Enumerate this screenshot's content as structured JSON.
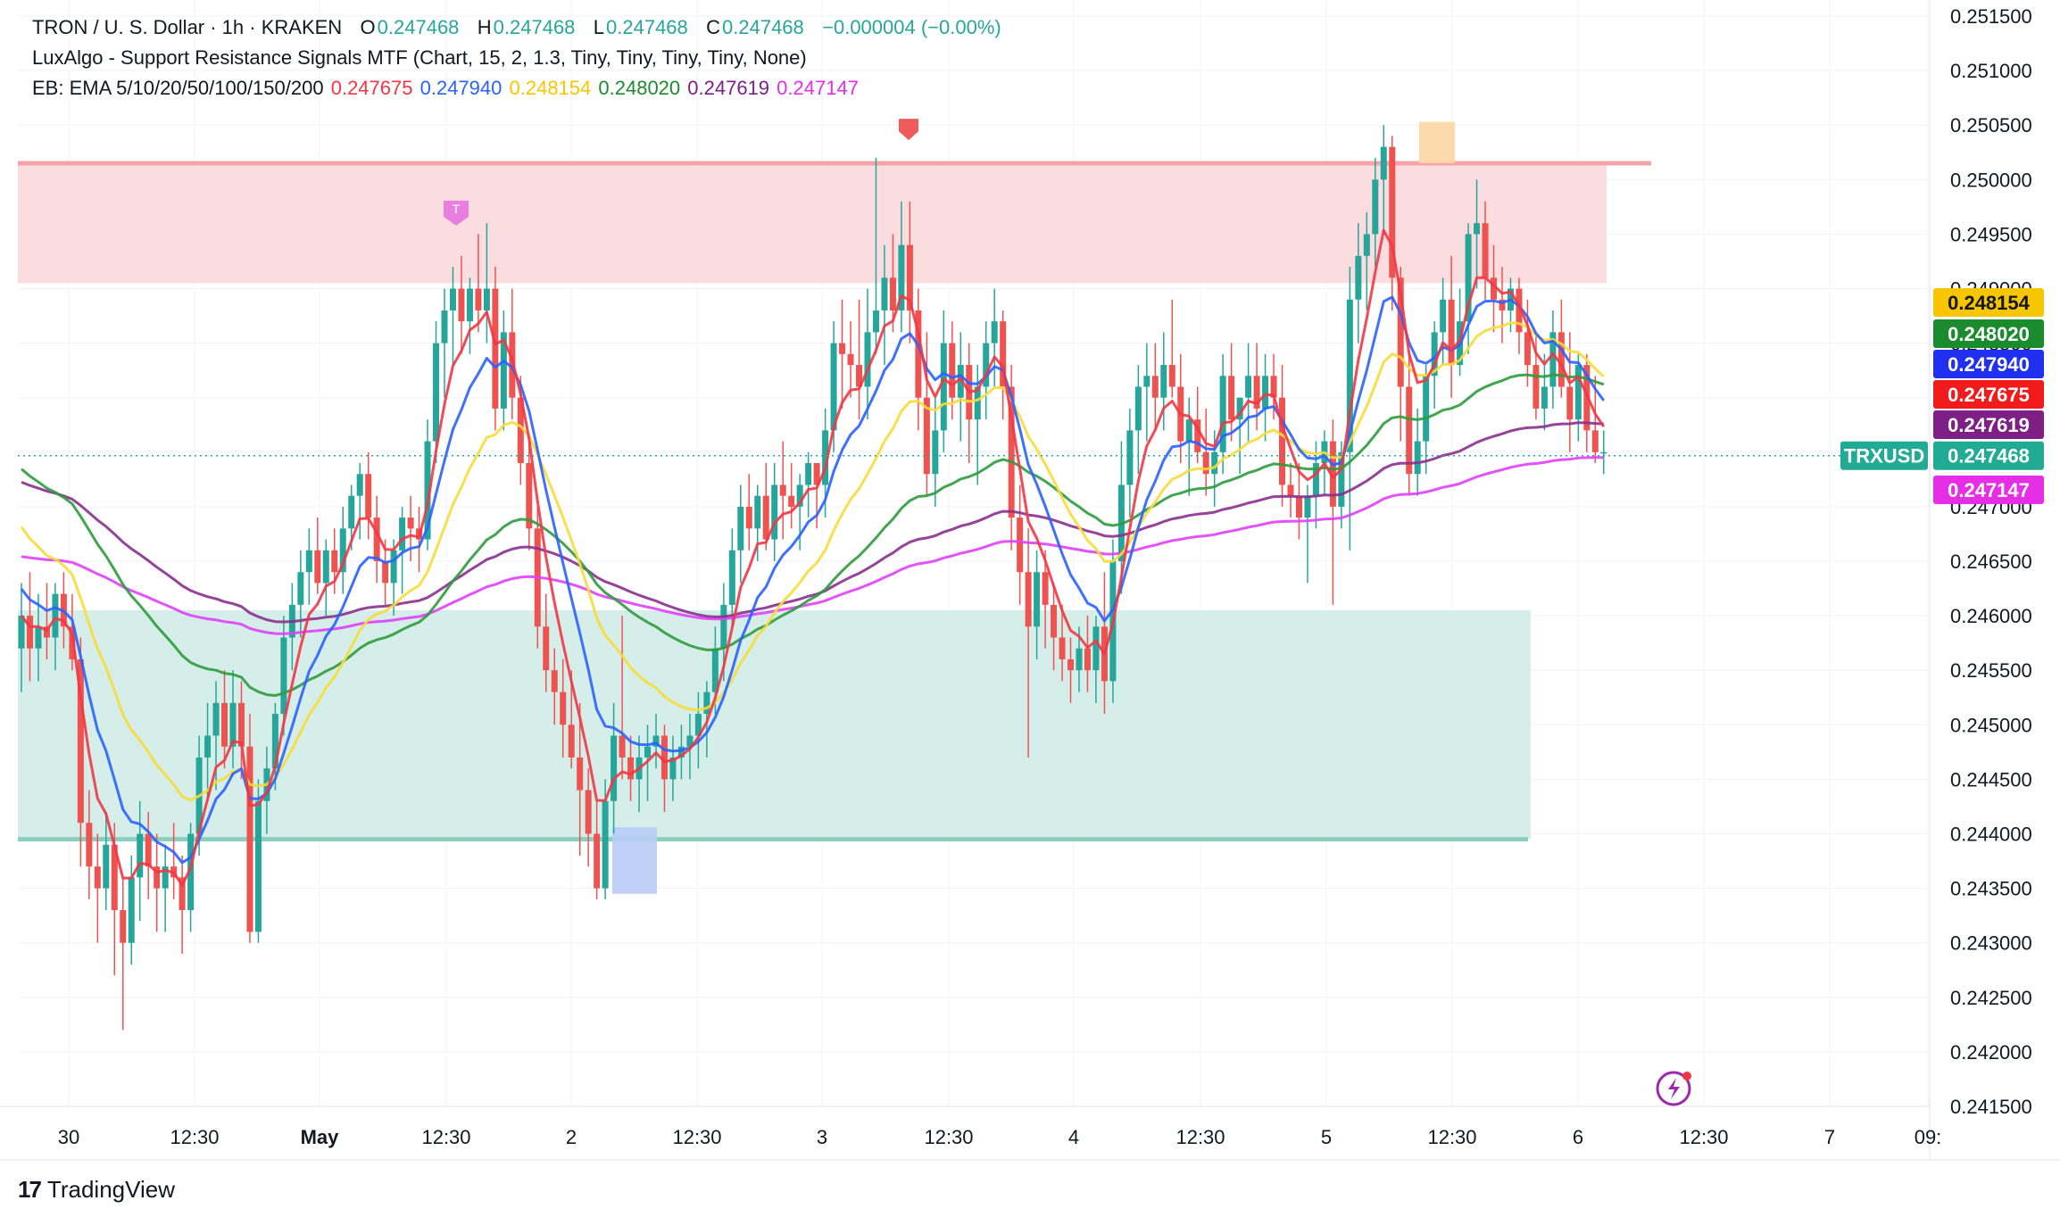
{
  "header": {
    "symbol_line": {
      "title": "TRON / U. S. Dollar · 1h · KRAKEN",
      "o_label": "O",
      "o_value": "0.247468",
      "h_label": "H",
      "h_value": "0.247468",
      "l_label": "L",
      "l_value": "0.247468",
      "c_label": "C",
      "c_value": "0.247468",
      "change": "−0.000004 (−0.00%)"
    },
    "indicator_line": "LuxAlgo - Support Resistance Signals MTF (Chart, 15, 2, 1.3, Tiny, Tiny, Tiny, Tiny, None)",
    "ema_line": {
      "label": "EB: EMA 5/10/20/50/100/150/200",
      "values": [
        "0.247675",
        "0.247940",
        "0.248154",
        "0.248020",
        "0.247619",
        "0.247147"
      ]
    }
  },
  "colors": {
    "up": "#26a69a",
    "down": "#ef5350",
    "ema5": "#f23645",
    "ema10": "#2962ff",
    "ema20": "#f7dc3a",
    "ema50": "#2e9b3c",
    "ema100": "#8b2f8f",
    "ema150": "#e040fb",
    "resistance_zone": "#fbdde0",
    "resistance_line": "#f4a3ab",
    "support_zone": "#d6eee9",
    "support_line": "#8ccfbf"
  },
  "chart_data": {
    "type": "candlestick",
    "symbol": "TRXUSD",
    "timeframe": "1h",
    "ylim": [
      0.2415,
      0.2515
    ],
    "y_ticks": [
      "0.251500",
      "0.251000",
      "0.250500",
      "0.250000",
      "0.249500",
      "0.249000",
      "0.248500",
      "0.248000",
      "0.247500",
      "0.247000",
      "0.246500",
      "0.246000",
      "0.245500",
      "0.245000",
      "0.244500",
      "0.244000",
      "0.243500",
      "0.243000",
      "0.242500",
      "0.242000",
      "0.241500"
    ],
    "x_ticks": [
      "30",
      "12:30",
      "May",
      "12:30",
      "2",
      "12:30",
      "3",
      "12:30",
      "4",
      "12:30",
      "5",
      "12:30",
      "6",
      "12:30",
      "7",
      "09:"
    ],
    "last_price": {
      "label": "TRXUSD",
      "value": "0.247468"
    },
    "ema_price_tags": [
      {
        "name": "EMA 20",
        "value": "0.248154",
        "color": "#f7c600",
        "text": "#131722"
      },
      {
        "name": "EMA 50",
        "value": "0.248020",
        "color": "#1b8c2e",
        "text": "#ffffff"
      },
      {
        "name": "EMA 10",
        "value": "0.247940",
        "color": "#2130f0",
        "text": "#ffffff"
      },
      {
        "name": "EMA 5",
        "value": "0.247675",
        "color": "#f21b1b",
        "text": "#ffffff"
      },
      {
        "name": "EMA 100",
        "value": "0.247619",
        "color": "#7e1f86",
        "text": "#ffffff"
      },
      {
        "name": "EMA 150",
        "value": "0.247147",
        "color": "#e62ee6",
        "text": "#ffffff"
      }
    ],
    "zones": [
      {
        "name": "resistance",
        "from": 0.24905,
        "to": 0.25015,
        "line": 0.25015
      },
      {
        "name": "support",
        "from": 0.24395,
        "to": 0.24605,
        "line": 0.24395
      }
    ],
    "signals": [
      {
        "label": "T",
        "kind": "resistance-test",
        "price": 0.24966
      },
      {
        "label": "",
        "kind": "resistance-break",
        "price": 0.25046
      }
    ],
    "ohlc": [
      [
        0.2457,
        0.2463,
        0.2453,
        0.246
      ],
      [
        0.246,
        0.2464,
        0.2454,
        0.2457
      ],
      [
        0.2457,
        0.2462,
        0.2454,
        0.2459
      ],
      [
        0.2459,
        0.2463,
        0.2456,
        0.2458
      ],
      [
        0.2458,
        0.2463,
        0.2455,
        0.2462
      ],
      [
        0.2462,
        0.2464,
        0.2457,
        0.2459
      ],
      [
        0.2459,
        0.2462,
        0.2455,
        0.2456
      ],
      [
        0.2456,
        0.2458,
        0.2437,
        0.2441
      ],
      [
        0.2441,
        0.2444,
        0.2434,
        0.2437
      ],
      [
        0.2437,
        0.244,
        0.243,
        0.2435
      ],
      [
        0.2435,
        0.2442,
        0.2433,
        0.2439
      ],
      [
        0.2439,
        0.2441,
        0.2427,
        0.2433
      ],
      [
        0.2433,
        0.2436,
        0.2422,
        0.243
      ],
      [
        0.243,
        0.2438,
        0.2428,
        0.2436
      ],
      [
        0.2436,
        0.2443,
        0.2432,
        0.244
      ],
      [
        0.244,
        0.2442,
        0.2434,
        0.2437
      ],
      [
        0.2437,
        0.244,
        0.2431,
        0.2435
      ],
      [
        0.2435,
        0.2439,
        0.2431,
        0.2437
      ],
      [
        0.2437,
        0.2441,
        0.2434,
        0.2436
      ],
      [
        0.2436,
        0.2438,
        0.2429,
        0.2433
      ],
      [
        0.2433,
        0.2441,
        0.2431,
        0.244
      ],
      [
        0.244,
        0.2449,
        0.2438,
        0.2447
      ],
      [
        0.2447,
        0.2452,
        0.2443,
        0.2449
      ],
      [
        0.2449,
        0.2454,
        0.2444,
        0.2452
      ],
      [
        0.2452,
        0.2455,
        0.2446,
        0.2448
      ],
      [
        0.2448,
        0.2455,
        0.2446,
        0.2452
      ],
      [
        0.2452,
        0.2454,
        0.2445,
        0.2448
      ],
      [
        0.2448,
        0.2451,
        0.243,
        0.2431
      ],
      [
        0.2431,
        0.2445,
        0.243,
        0.2443
      ],
      [
        0.2443,
        0.2448,
        0.244,
        0.2446
      ],
      [
        0.2446,
        0.2452,
        0.2444,
        0.2451
      ],
      [
        0.2451,
        0.246,
        0.2449,
        0.2458
      ],
      [
        0.2458,
        0.2463,
        0.2455,
        0.2461
      ],
      [
        0.2461,
        0.2466,
        0.2458,
        0.2464
      ],
      [
        0.2464,
        0.2468,
        0.2461,
        0.2466
      ],
      [
        0.2466,
        0.2469,
        0.2462,
        0.2463
      ],
      [
        0.2463,
        0.2467,
        0.246,
        0.2466
      ],
      [
        0.2466,
        0.2468,
        0.2462,
        0.2464
      ],
      [
        0.2464,
        0.247,
        0.2462,
        0.2468
      ],
      [
        0.2468,
        0.2472,
        0.2466,
        0.2471
      ],
      [
        0.2471,
        0.2474,
        0.2467,
        0.2473
      ],
      [
        0.2473,
        0.2475,
        0.2467,
        0.2469
      ],
      [
        0.2469,
        0.2471,
        0.2463,
        0.2465
      ],
      [
        0.2465,
        0.2467,
        0.2461,
        0.2463
      ],
      [
        0.2463,
        0.2467,
        0.246,
        0.2466
      ],
      [
        0.2466,
        0.247,
        0.2462,
        0.2469
      ],
      [
        0.2469,
        0.2471,
        0.2465,
        0.2468
      ],
      [
        0.2468,
        0.247,
        0.2464,
        0.2467
      ],
      [
        0.2467,
        0.2478,
        0.2466,
        0.2476
      ],
      [
        0.2476,
        0.2487,
        0.2474,
        0.2485
      ],
      [
        0.2485,
        0.249,
        0.248,
        0.2488
      ],
      [
        0.2488,
        0.2492,
        0.2483,
        0.249
      ],
      [
        0.249,
        0.2493,
        0.2484,
        0.2487
      ],
      [
        0.2487,
        0.2491,
        0.2484,
        0.249
      ],
      [
        0.249,
        0.2495,
        0.2486,
        0.2488
      ],
      [
        0.2488,
        0.2496,
        0.2485,
        0.249
      ],
      [
        0.249,
        0.2492,
        0.2477,
        0.2479
      ],
      [
        0.2479,
        0.2488,
        0.2477,
        0.2486
      ],
      [
        0.2486,
        0.249,
        0.2478,
        0.248
      ],
      [
        0.248,
        0.2482,
        0.2472,
        0.2474
      ],
      [
        0.2474,
        0.2476,
        0.2466,
        0.2468
      ],
      [
        0.2468,
        0.247,
        0.2457,
        0.2459
      ],
      [
        0.2459,
        0.2462,
        0.2453,
        0.2455
      ],
      [
        0.2455,
        0.2457,
        0.245,
        0.2453
      ],
      [
        0.2453,
        0.2456,
        0.2447,
        0.245
      ],
      [
        0.245,
        0.2455,
        0.2446,
        0.2447
      ],
      [
        0.2447,
        0.2452,
        0.2438,
        0.2444
      ],
      [
        0.2444,
        0.2446,
        0.2437,
        0.244
      ],
      [
        0.244,
        0.2443,
        0.2434,
        0.2435
      ],
      [
        0.2435,
        0.2445,
        0.2434,
        0.2443
      ],
      [
        0.2443,
        0.2452,
        0.244,
        0.2449
      ],
      [
        0.2449,
        0.246,
        0.2445,
        0.2447
      ],
      [
        0.2447,
        0.2449,
        0.2443,
        0.2445
      ],
      [
        0.2445,
        0.2449,
        0.2442,
        0.2447
      ],
      [
        0.2447,
        0.245,
        0.2443,
        0.2448
      ],
      [
        0.2448,
        0.2451,
        0.2446,
        0.2449
      ],
      [
        0.2449,
        0.245,
        0.2442,
        0.2445
      ],
      [
        0.2445,
        0.2449,
        0.2443,
        0.2447
      ],
      [
        0.2447,
        0.245,
        0.2445,
        0.2448
      ],
      [
        0.2448,
        0.2451,
        0.2445,
        0.2449
      ],
      [
        0.2449,
        0.2453,
        0.2446,
        0.2451
      ],
      [
        0.2451,
        0.2454,
        0.2447,
        0.2453
      ],
      [
        0.2453,
        0.2459,
        0.2451,
        0.2457
      ],
      [
        0.2457,
        0.2463,
        0.2454,
        0.2461
      ],
      [
        0.2461,
        0.2468,
        0.2459,
        0.2466
      ],
      [
        0.2466,
        0.2472,
        0.2463,
        0.247
      ],
      [
        0.247,
        0.2473,
        0.2466,
        0.2468
      ],
      [
        0.2468,
        0.2472,
        0.2465,
        0.2471
      ],
      [
        0.2471,
        0.2474,
        0.2466,
        0.2467
      ],
      [
        0.2467,
        0.2474,
        0.2465,
        0.2472
      ],
      [
        0.2472,
        0.2476,
        0.2467,
        0.2471
      ],
      [
        0.2471,
        0.2474,
        0.2468,
        0.247
      ],
      [
        0.247,
        0.2473,
        0.2466,
        0.2472
      ],
      [
        0.2472,
        0.2475,
        0.2469,
        0.2474
      ],
      [
        0.2474,
        0.2474,
        0.2468,
        0.2472
      ],
      [
        0.2472,
        0.2479,
        0.2469,
        0.2477
      ],
      [
        0.2477,
        0.2487,
        0.2475,
        0.2485
      ],
      [
        0.2485,
        0.2489,
        0.2479,
        0.2484
      ],
      [
        0.2484,
        0.2487,
        0.248,
        0.2483
      ],
      [
        0.2483,
        0.2489,
        0.2478,
        0.2481
      ],
      [
        0.2481,
        0.249,
        0.2478,
        0.2486
      ],
      [
        0.2486,
        0.2502,
        0.2484,
        0.2488
      ],
      [
        0.2488,
        0.2494,
        0.2483,
        0.2491
      ],
      [
        0.2491,
        0.2495,
        0.2486,
        0.2488
      ],
      [
        0.2488,
        0.2498,
        0.2486,
        0.2494
      ],
      [
        0.2494,
        0.2498,
        0.2485,
        0.2488
      ],
      [
        0.2488,
        0.249,
        0.2477,
        0.248
      ],
      [
        0.248,
        0.2486,
        0.2471,
        0.2473
      ],
      [
        0.2473,
        0.248,
        0.247,
        0.2477
      ],
      [
        0.2477,
        0.2488,
        0.2475,
        0.2485
      ],
      [
        0.2485,
        0.2487,
        0.2478,
        0.248
      ],
      [
        0.248,
        0.2486,
        0.2476,
        0.2483
      ],
      [
        0.2483,
        0.2485,
        0.2474,
        0.2478
      ],
      [
        0.2478,
        0.2483,
        0.2472,
        0.2481
      ],
      [
        0.2481,
        0.2487,
        0.2478,
        0.2485
      ],
      [
        0.2485,
        0.249,
        0.2481,
        0.2487
      ],
      [
        0.2487,
        0.2488,
        0.2478,
        0.2481
      ],
      [
        0.2481,
        0.2483,
        0.2466,
        0.2469
      ],
      [
        0.2469,
        0.2472,
        0.2461,
        0.2464
      ],
      [
        0.2464,
        0.2468,
        0.2447,
        0.2459
      ],
      [
        0.2459,
        0.2466,
        0.2456,
        0.2464
      ],
      [
        0.2464,
        0.2466,
        0.2457,
        0.2461
      ],
      [
        0.2461,
        0.2463,
        0.2455,
        0.2458
      ],
      [
        0.2458,
        0.2461,
        0.2454,
        0.2456
      ],
      [
        0.2456,
        0.2458,
        0.2452,
        0.2455
      ],
      [
        0.2455,
        0.2459,
        0.2453,
        0.2457
      ],
      [
        0.2457,
        0.246,
        0.2453,
        0.2455
      ],
      [
        0.2455,
        0.246,
        0.2452,
        0.2459
      ],
      [
        0.2459,
        0.2464,
        0.2451,
        0.2454
      ],
      [
        0.2454,
        0.2467,
        0.2452,
        0.2465
      ],
      [
        0.2465,
        0.2476,
        0.2462,
        0.2472
      ],
      [
        0.2472,
        0.2479,
        0.2469,
        0.2477
      ],
      [
        0.2477,
        0.2483,
        0.2473,
        0.2481
      ],
      [
        0.2481,
        0.2485,
        0.2476,
        0.2482
      ],
      [
        0.2482,
        0.2485,
        0.2477,
        0.248
      ],
      [
        0.248,
        0.2486,
        0.2477,
        0.2483
      ],
      [
        0.2483,
        0.2489,
        0.248,
        0.2481
      ],
      [
        0.2481,
        0.2484,
        0.2474,
        0.2476
      ],
      [
        0.2476,
        0.248,
        0.2471,
        0.2478
      ],
      [
        0.2478,
        0.2481,
        0.2474,
        0.2475
      ],
      [
        0.2475,
        0.2479,
        0.2471,
        0.2473
      ],
      [
        0.2473,
        0.2477,
        0.247,
        0.2475
      ],
      [
        0.2475,
        0.2484,
        0.2473,
        0.2482
      ],
      [
        0.2482,
        0.2485,
        0.2476,
        0.2478
      ],
      [
        0.2478,
        0.248,
        0.2473,
        0.248
      ],
      [
        0.248,
        0.2485,
        0.2476,
        0.2482
      ],
      [
        0.2482,
        0.2485,
        0.2477,
        0.2479
      ],
      [
        0.2479,
        0.2484,
        0.2476,
        0.2482
      ],
      [
        0.2482,
        0.2484,
        0.2478,
        0.248
      ],
      [
        0.248,
        0.2483,
        0.247,
        0.2472
      ],
      [
        0.2472,
        0.2474,
        0.2469,
        0.2471
      ],
      [
        0.2471,
        0.2474,
        0.2467,
        0.2469
      ],
      [
        0.2469,
        0.2472,
        0.2463,
        0.2471
      ],
      [
        0.2471,
        0.2476,
        0.2468,
        0.2474
      ],
      [
        0.2474,
        0.2477,
        0.2471,
        0.2476
      ],
      [
        0.2476,
        0.2478,
        0.2461,
        0.247
      ],
      [
        0.247,
        0.2476,
        0.2468,
        0.2475
      ],
      [
        0.2475,
        0.2492,
        0.2466,
        0.2489
      ],
      [
        0.2489,
        0.2496,
        0.2485,
        0.2493
      ],
      [
        0.2493,
        0.2497,
        0.2488,
        0.2495
      ],
      [
        0.2495,
        0.2502,
        0.2492,
        0.25
      ],
      [
        0.25,
        0.2505,
        0.2495,
        0.2503
      ],
      [
        0.2503,
        0.2504,
        0.2488,
        0.2491
      ],
      [
        0.2491,
        0.2492,
        0.2476,
        0.2481
      ],
      [
        0.2481,
        0.2484,
        0.2471,
        0.2473
      ],
      [
        0.2473,
        0.2479,
        0.2471,
        0.2476
      ],
      [
        0.2476,
        0.2483,
        0.2473,
        0.2482
      ],
      [
        0.2482,
        0.2487,
        0.2479,
        0.2486
      ],
      [
        0.2486,
        0.2491,
        0.2483,
        0.2489
      ],
      [
        0.2489,
        0.2493,
        0.248,
        0.2483
      ],
      [
        0.2483,
        0.249,
        0.2482,
        0.2487
      ],
      [
        0.2487,
        0.2496,
        0.2484,
        0.2495
      ],
      [
        0.2495,
        0.25,
        0.249,
        0.2496
      ],
      [
        0.2496,
        0.2498,
        0.2489,
        0.2491
      ],
      [
        0.2491,
        0.2494,
        0.2486,
        0.2489
      ],
      [
        0.2489,
        0.2492,
        0.2485,
        0.2488
      ],
      [
        0.2488,
        0.2491,
        0.2486,
        0.249
      ],
      [
        0.249,
        0.2491,
        0.2484,
        0.2486
      ],
      [
        0.2486,
        0.2489,
        0.2481,
        0.2483
      ],
      [
        0.2483,
        0.2486,
        0.2478,
        0.2479
      ],
      [
        0.2479,
        0.2484,
        0.2477,
        0.2481
      ],
      [
        0.2481,
        0.2488,
        0.2479,
        0.2486
      ],
      [
        0.2486,
        0.2489,
        0.248,
        0.2481
      ],
      [
        0.2481,
        0.2486,
        0.2475,
        0.2478
      ],
      [
        0.2478,
        0.2484,
        0.2476,
        0.2483
      ],
      [
        0.2483,
        0.2484,
        0.2475,
        0.2477
      ],
      [
        0.2477,
        0.2482,
        0.2474,
        0.2475
      ],
      [
        0.2475,
        0.2477,
        0.2473,
        0.2475
      ]
    ]
  }
}
